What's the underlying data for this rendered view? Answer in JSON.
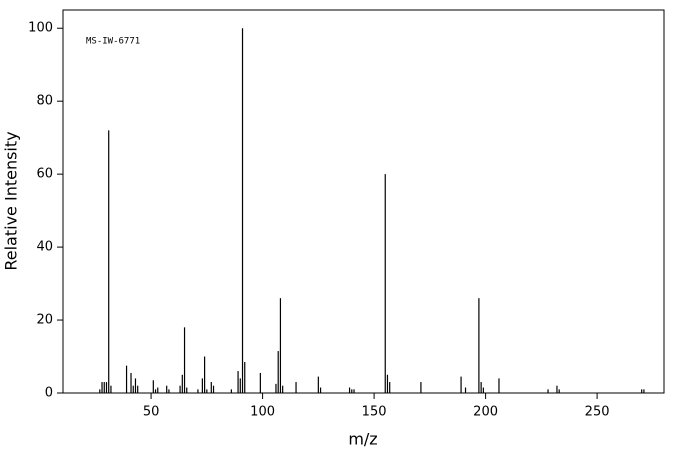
{
  "chart_data": {
    "type": "stick",
    "annotation": "MS-IW-6771",
    "x_label": "m/z",
    "y_label": "Relative Intensity",
    "color": "#000000",
    "x": [
      27,
      28,
      29,
      30,
      31,
      32,
      39,
      41,
      42,
      43,
      44,
      51,
      52,
      53,
      57,
      58,
      63,
      64,
      65,
      66,
      71,
      73,
      74,
      75,
      77,
      78,
      86,
      89,
      90,
      91,
      92,
      99,
      106,
      107,
      108,
      109,
      115,
      125,
      126,
      139,
      140,
      141,
      155,
      156,
      157,
      171,
      189,
      191,
      197,
      198,
      199,
      206,
      228,
      232,
      233,
      270,
      271
    ],
    "values": [
      1,
      3,
      3,
      3,
      72,
      2,
      7.5,
      5.5,
      2,
      4,
      2,
      3.5,
      1,
      1.5,
      2,
      1,
      2,
      5,
      18,
      1.5,
      1,
      4,
      10,
      1,
      3,
      2,
      1,
      6,
      4,
      100,
      8.5,
      5.5,
      2.5,
      11.5,
      26,
      2,
      3,
      4.5,
      1.5,
      1.5,
      1,
      1,
      60,
      5,
      3,
      3,
      4.5,
      1.5,
      26,
      3,
      1.5,
      4,
      1,
      2,
      1,
      1,
      1
    ],
    "xlim": [
      10.5,
      280
    ],
    "ylim": [
      0,
      105
    ],
    "xticks": [
      50,
      100,
      150,
      200,
      250
    ],
    "yticks": [
      0,
      20,
      40,
      60,
      80,
      100
    ]
  }
}
